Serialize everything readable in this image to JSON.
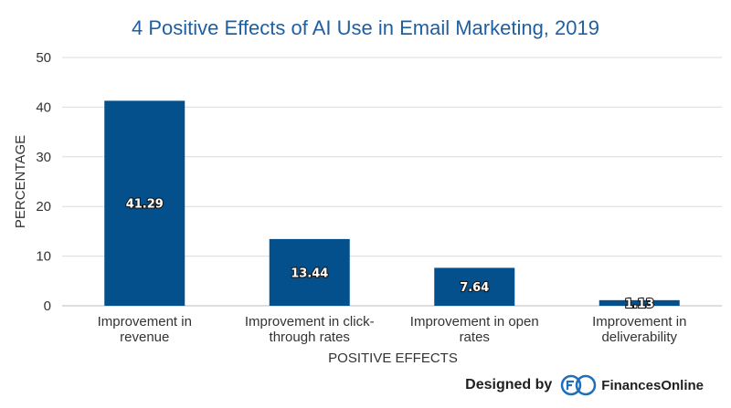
{
  "chart_data": {
    "type": "bar",
    "title": "4 Positive Effects of AI Use in Email Marketing, 2019",
    "xlabel": "POSITIVE EFFECTS",
    "ylabel": "PERCENTAGE",
    "ylim": [
      0,
      50
    ],
    "yticks": [
      0,
      10,
      20,
      30,
      40,
      50
    ],
    "grid": true,
    "categories": [
      [
        "Improvement in",
        "revenue"
      ],
      [
        "Improvement in click-",
        "through rates"
      ],
      [
        "Improvement in open",
        "rates"
      ],
      [
        "Improvement in",
        "deliverability"
      ]
    ],
    "values": [
      41.29,
      13.44,
      7.64,
      1.13
    ],
    "data_labels": [
      "41.29",
      "13.44",
      "7.64",
      "1.13"
    ],
    "bar_color": "#03508c",
    "title_color": "#1f5f9f"
  },
  "footer": {
    "designed_by": "Designed by",
    "brand": "FinancesOnline"
  }
}
